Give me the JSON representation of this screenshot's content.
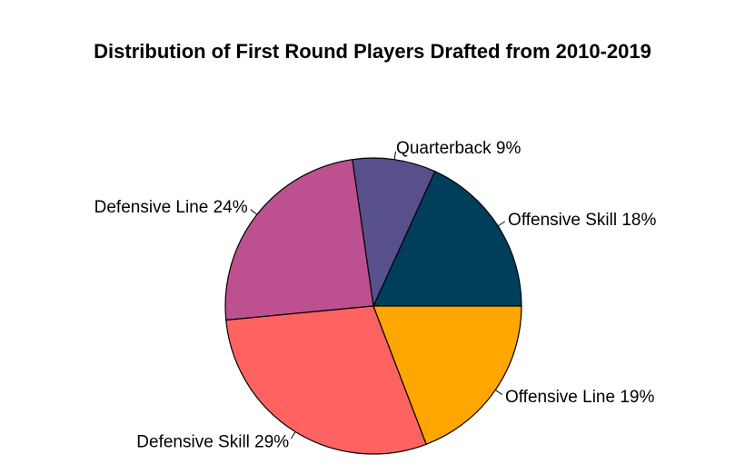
{
  "chart_data": {
    "type": "pie",
    "title": "Distribution of First Round Players Drafted from 2010-2019",
    "slices": [
      {
        "label": "Offensive Skill 18%",
        "category": "Offensive Skill",
        "value": 18,
        "color": "#003F5C"
      },
      {
        "label": "Quarterback 9%",
        "category": "Quarterback",
        "value": 9,
        "color": "#58508D"
      },
      {
        "label": "Defensive Line 24%",
        "category": "Defensive Line",
        "value": 24,
        "color": "#BC5090"
      },
      {
        "label": "Defensive Skill 29%",
        "category": "Defensive Skill",
        "value": 29,
        "color": "#FF6361"
      },
      {
        "label": "Offensive Line 19%",
        "category": "Offensive Line",
        "value": 19,
        "color": "#FFA600"
      }
    ],
    "start_angle_deg": 0,
    "direction": "counterclockwise"
  }
}
